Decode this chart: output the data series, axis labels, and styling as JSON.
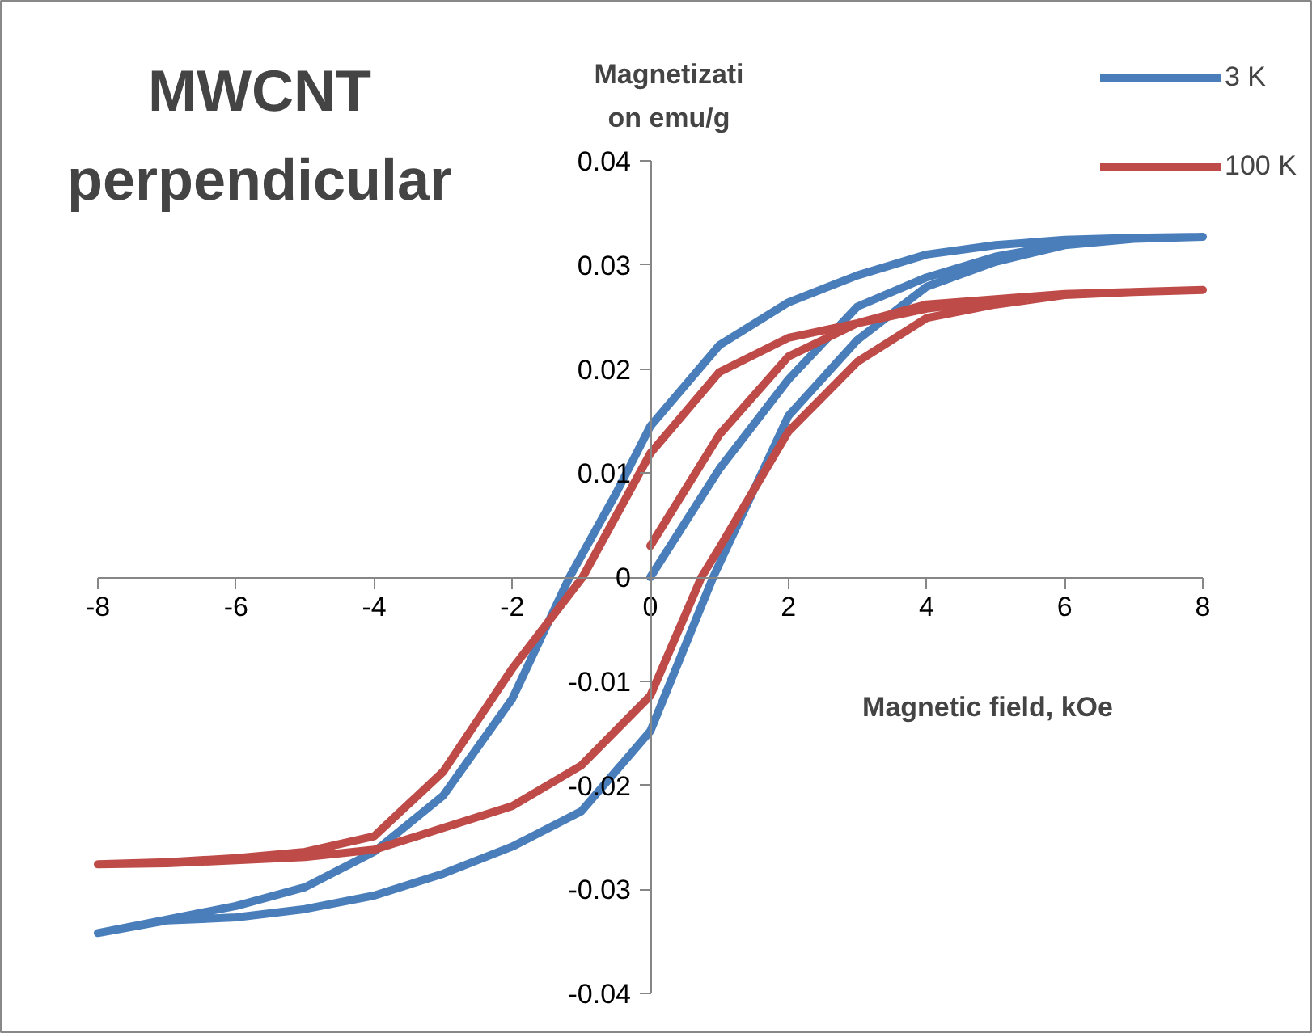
{
  "chart_data": {
    "type": "line",
    "title": "MWCNT perpendicular",
    "xlabel": "Magnetic field, kOe",
    "ylabel": "Magnetizati\non emu/g",
    "series": [
      {
        "name": "3 K",
        "color": "#4a7ebb",
        "x": [
          0,
          1,
          2,
          3,
          4,
          5,
          6,
          7,
          8,
          7,
          6,
          5,
          4,
          3,
          2,
          1,
          0,
          -0.5,
          -1.17,
          -2,
          -3,
          -4,
          -5,
          -6,
          -7,
          -8,
          -7,
          -6,
          -5,
          -4,
          -3,
          -2,
          -1,
          0,
          0.91,
          2,
          3,
          4,
          5,
          6,
          7,
          8
        ],
        "values": [
          0,
          0.0104,
          0.019,
          0.026,
          0.0288,
          0.0308,
          0.032,
          0.0325,
          0.0327,
          0.0326,
          0.0324,
          0.0319,
          0.031,
          0.029,
          0.0264,
          0.0223,
          0.0145,
          0.008,
          0,
          -0.0117,
          -0.021,
          -0.0264,
          -0.0298,
          -0.0316,
          -0.0329,
          -0.0342,
          -0.033,
          -0.0327,
          -0.0319,
          -0.0306,
          -0.0285,
          -0.0259,
          -0.0225,
          -0.0148,
          0,
          0.0155,
          0.0228,
          0.0279,
          0.0303,
          0.0319,
          0.0325,
          0.0327
        ]
      },
      {
        "name": "100 K",
        "color": "#be4b48",
        "x": [
          0,
          1,
          2,
          3,
          4,
          5,
          6,
          7,
          8,
          7,
          6,
          5,
          4,
          3,
          2,
          1,
          0,
          -0.98,
          -2,
          -3,
          -4,
          -5,
          -6,
          -7,
          -8,
          -7,
          -6,
          -5,
          -4,
          -3,
          -2,
          -1,
          0,
          0.74,
          1,
          2,
          3,
          4,
          5,
          6,
          7,
          8
        ],
        "values": [
          0.003,
          0.0137,
          0.0212,
          0.0244,
          0.0258,
          0.0266,
          0.0271,
          0.0274,
          0.0276,
          0.0274,
          0.0272,
          0.0267,
          0.0262,
          0.0244,
          0.023,
          0.0197,
          0.0119,
          0,
          -0.0088,
          -0.0187,
          -0.0249,
          -0.0264,
          -0.027,
          -0.0274,
          -0.0276,
          -0.0275,
          -0.0272,
          -0.0269,
          -0.0262,
          -0.0241,
          -0.022,
          -0.0181,
          -0.0114,
          0,
          0.0028,
          0.014,
          0.0207,
          0.0249,
          0.0262,
          0.0271,
          0.0274,
          0.0276
        ]
      }
    ],
    "xlim": [
      -8,
      8
    ],
    "xticks": [
      -8,
      -6,
      -4,
      -2,
      0,
      2,
      4,
      6,
      8
    ],
    "ylim": [
      -0.04,
      0.04
    ],
    "yticks": [
      -0.04,
      -0.03,
      -0.02,
      -0.01,
      0,
      0.01,
      0.02,
      0.03,
      0.04
    ],
    "grid": false,
    "legend": "top right",
    "marker": "none",
    "line_style": "solid"
  }
}
